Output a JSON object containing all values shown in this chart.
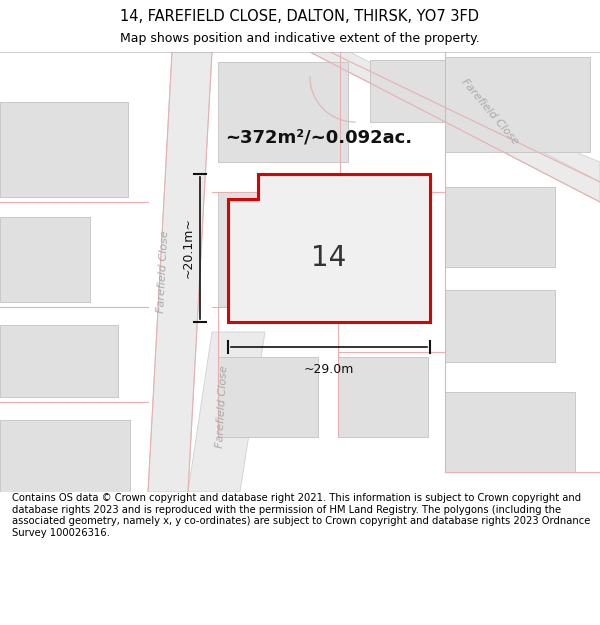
{
  "title_line1": "14, FAREFIELD CLOSE, DALTON, THIRSK, YO7 3FD",
  "title_line2": "Map shows position and indicative extent of the property.",
  "footer_text": "Contains OS data © Crown copyright and database right 2021. This information is subject to Crown copyright and database rights 2023 and is reproduced with the permission of HM Land Registry. The polygons (including the associated geometry, namely x, y co-ordinates) are subject to Crown copyright and database rights 2023 Ordnance Survey 100026316.",
  "area_label": "~372m²/~0.092ac.",
  "number_label": "14",
  "width_label": "~29.0m",
  "height_label": "~20.1m~",
  "map_bg": "#f7f7f7",
  "road_fill": "#ebebeb",
  "road_edge": "#d0d0d0",
  "block_color": "#e0e0e0",
  "block_edge": "#c8c8c8",
  "pink": "#e8b0b0",
  "highlight_color": "#dd0000",
  "highlight_fill": "#f5f5f5",
  "road_label_color": "#aaaaaa",
  "dim_color": "#111111",
  "title_fontsize": 10.5,
  "subtitle_fontsize": 9,
  "footer_fontsize": 7.2,
  "area_fontsize": 13,
  "number_fontsize": 20,
  "dim_fontsize": 9,
  "road_label_fontsize": 8
}
